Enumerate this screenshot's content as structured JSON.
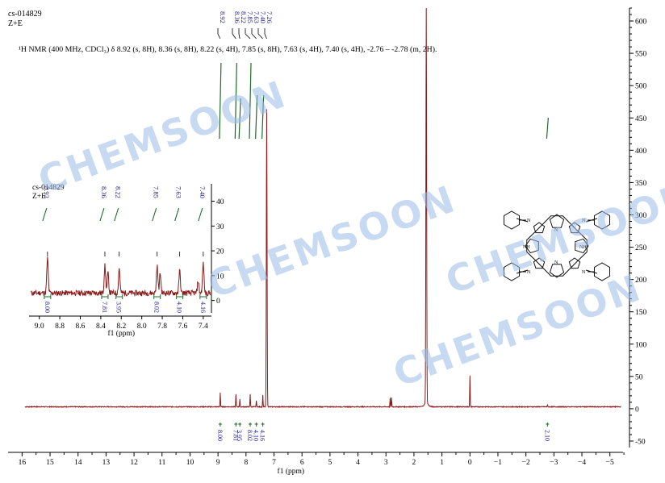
{
  "header": {
    "sample_id": "cs-014829",
    "isomer": "Z+E"
  },
  "nmr_summary": "¹H NMR (400 MHz, CDCl₃) δ 8.92 (s, 8H), 8.36 (s, 8H), 8.22 (s, 4H), 7.85 (s, 8H), 7.63 (s, 4H), 7.40 (s, 4H), -2.76 – -2.78 (m, 2H).",
  "watermark": "CHEMSOON",
  "colors": {
    "spectrum": "#8b1a1a",
    "peak_label": "#1a1a8c",
    "integral": "#1f6b2a",
    "watermark": "#9cbde6"
  },
  "chart_data": [
    {
      "type": "line",
      "xlabel": "f1 (ppm)",
      "ylabel": "",
      "xlim": [
        16.5,
        -5.7
      ],
      "ylim": [
        -60,
        620
      ],
      "x_ticks": [
        16,
        15,
        14,
        13,
        12,
        11,
        10,
        9,
        8,
        7,
        6,
        5,
        4,
        3,
        2,
        1,
        0,
        -1,
        -2,
        -3,
        -4,
        -5
      ],
      "y_ticks": [
        -50,
        0,
        50,
        100,
        150,
        200,
        250,
        300,
        350,
        400,
        450,
        500,
        550,
        600
      ],
      "peak_labels": [
        "8.92",
        "8.36",
        "8.22",
        "7.85",
        "7.63",
        "7.40",
        "7.26"
      ],
      "integrals": [
        {
          "x": 8.92,
          "label": "8.00"
        },
        {
          "x": 8.36,
          "label": "7.81"
        },
        {
          "x": 8.22,
          "label": "3.95"
        },
        {
          "x": 7.85,
          "label": "8.02"
        },
        {
          "x": 7.63,
          "label": "4.10"
        },
        {
          "x": 7.4,
          "label": "4.16"
        },
        {
          "x": -2.77,
          "label": "2.10"
        }
      ],
      "peaks": [
        {
          "x": 8.92,
          "y": 22
        },
        {
          "x": 8.36,
          "y": 20
        },
        {
          "x": 8.22,
          "y": 12
        },
        {
          "x": 7.85,
          "y": 20
        },
        {
          "x": 7.63,
          "y": 10
        },
        {
          "x": 7.4,
          "y": 18
        },
        {
          "x": 7.26,
          "y": 460
        },
        {
          "x": 2.85,
          "y": 14
        },
        {
          "x": 2.8,
          "y": 14
        },
        {
          "x": 1.56,
          "y": 620
        },
        {
          "x": 0.0,
          "y": 48
        },
        {
          "x": -2.77,
          "y": 3
        }
      ]
    },
    {
      "type": "line",
      "title": "inset",
      "xlabel": "f1 (ppm)",
      "xlim": [
        9.1,
        7.32
      ],
      "ylim": [
        -5,
        47
      ],
      "x_ticks": [
        9.0,
        8.8,
        8.6,
        8.4,
        8.2,
        8.0,
        7.8,
        7.6,
        7.4
      ],
      "y_ticks": [
        0,
        10,
        20,
        30,
        40
      ],
      "peak_labels": [
        "8.92",
        "8.36",
        "8.22",
        "7.85",
        "7.63",
        "7.40"
      ],
      "integrals": [
        {
          "x": 8.92,
          "label": "8.00"
        },
        {
          "x": 8.36,
          "label": "7.81"
        },
        {
          "x": 8.22,
          "label": "3.95"
        },
        {
          "x": 7.85,
          "label": "8.02"
        },
        {
          "x": 7.63,
          "label": "4.10"
        },
        {
          "x": 7.4,
          "label": "4.16"
        }
      ],
      "peaks": [
        {
          "x": 8.92,
          "y": 14
        },
        {
          "x": 8.36,
          "y": 11
        },
        {
          "x": 8.33,
          "y": 8
        },
        {
          "x": 8.22,
          "y": 10
        },
        {
          "x": 7.85,
          "y": 11
        },
        {
          "x": 7.82,
          "y": 8
        },
        {
          "x": 7.63,
          "y": 9
        },
        {
          "x": 7.4,
          "y": 12
        },
        {
          "x": 7.45,
          "y": 5
        }
      ],
      "baseline": 3
    }
  ]
}
